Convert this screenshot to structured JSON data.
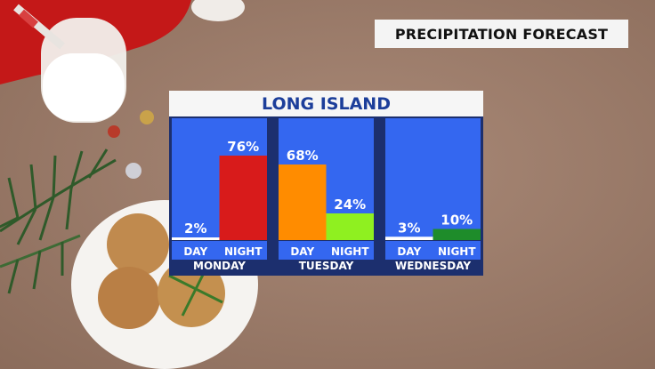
{
  "header": {
    "title": "PRECIPITATION FORECAST"
  },
  "chart_data": {
    "type": "bar",
    "title": "LONG ISLAND",
    "ylim": [
      0,
      100
    ],
    "groups": [
      {
        "day": "MONDAY",
        "bars": [
          {
            "label": "DAY",
            "value": 2,
            "display": "2%",
            "color": "#ffffff"
          },
          {
            "label": "NIGHT",
            "value": 76,
            "display": "76%",
            "color": "#d81b1b"
          }
        ]
      },
      {
        "day": "TUESDAY",
        "bars": [
          {
            "label": "DAY",
            "value": 68,
            "display": "68%",
            "color": "#ff8c00"
          },
          {
            "label": "NIGHT",
            "value": 24,
            "display": "24%",
            "color": "#8ff020"
          }
        ]
      },
      {
        "day": "WEDNESDAY",
        "bars": [
          {
            "label": "DAY",
            "value": 3,
            "display": "3%",
            "color": "#ffffff"
          },
          {
            "label": "NIGHT",
            "value": 10,
            "display": "10%",
            "color": "#1e8c2a"
          }
        ]
      }
    ],
    "colors": {
      "plot_bg": "#3467f0",
      "frame": "#1c2f6e",
      "label_text": "#ffffff",
      "title_text": "#1c3e9a"
    }
  }
}
